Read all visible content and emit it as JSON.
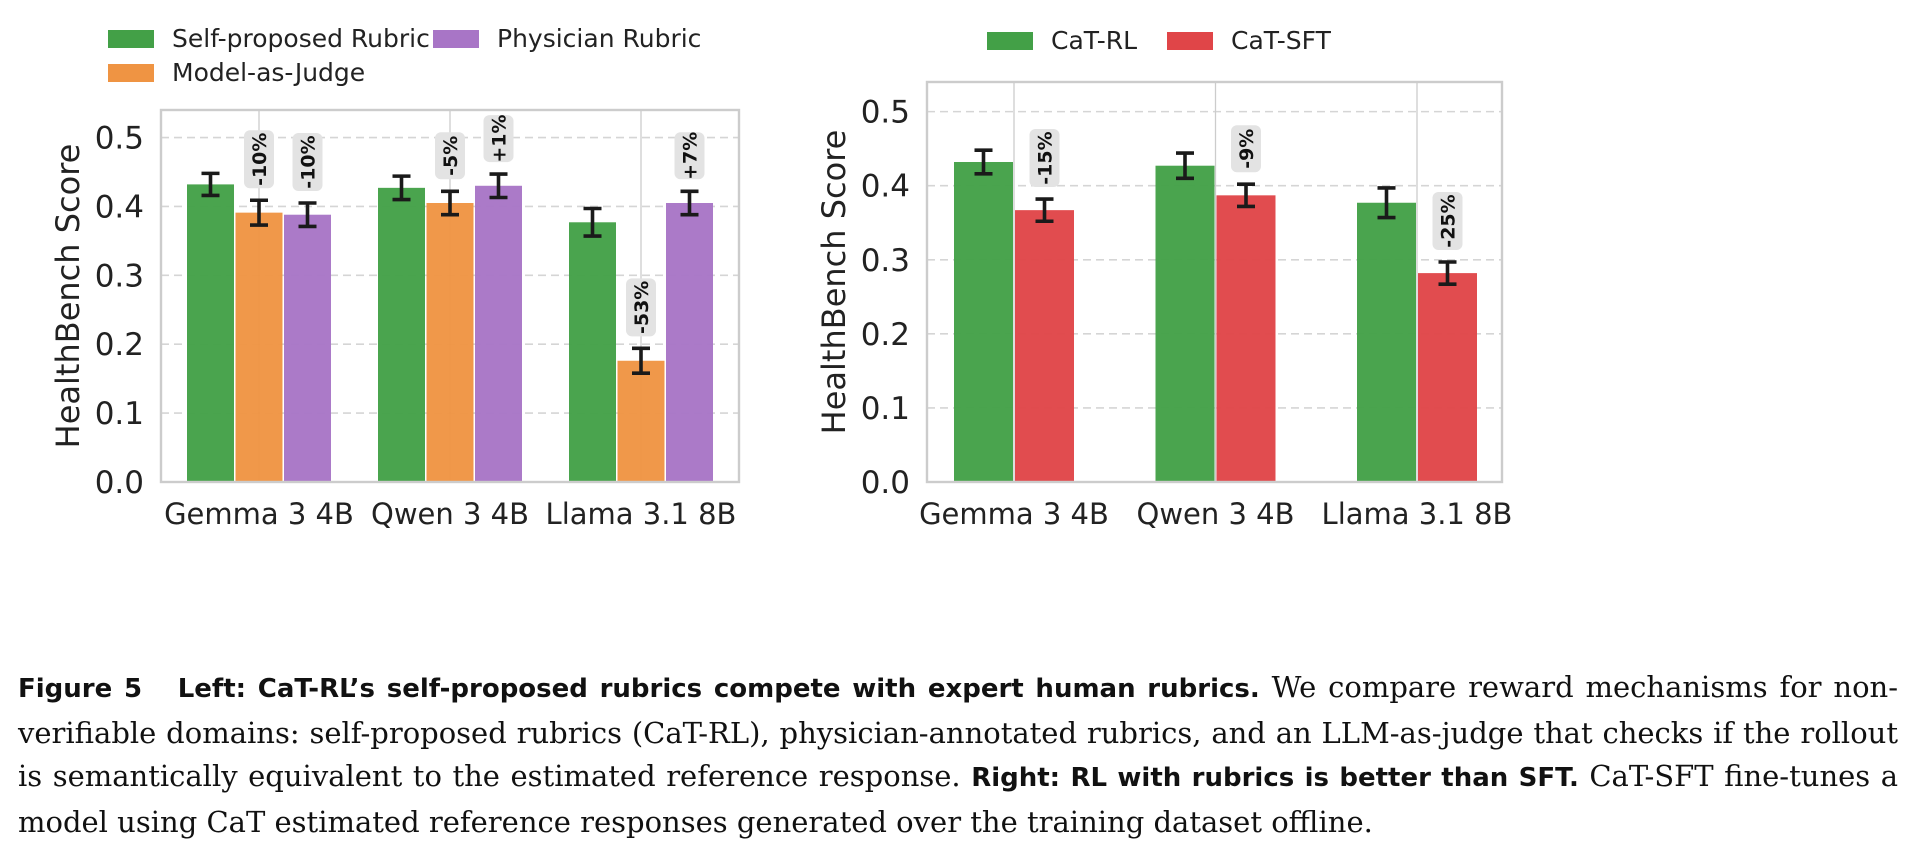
{
  "colors": {
    "green": "#43A047",
    "orange": "#EF9443",
    "purple": "#A875C6",
    "red": "#E04548",
    "grid": "#D5D5D5",
    "badge": "#E3E3E3",
    "axis": "#CCCCCC"
  },
  "chart_data": [
    {
      "type": "bar",
      "ylabel": "HealthBench Score",
      "ylim": [
        0,
        0.54
      ],
      "yticks": [
        "0.0",
        "0.1",
        "0.2",
        "0.3",
        "0.4",
        "0.5"
      ],
      "categories": [
        "Gemma 3 4B",
        "Qwen 3 4B",
        "Llama 3.1 8B"
      ],
      "legend_position": "top",
      "series": [
        {
          "name": "Self-proposed Rubric",
          "color_key": "green",
          "values": [
            0.432,
            0.427,
            0.377
          ],
          "errors": [
            0.016,
            0.017,
            0.02
          ]
        },
        {
          "name": "Model-as-Judge",
          "color_key": "orange",
          "values": [
            0.391,
            0.405,
            0.176
          ],
          "errors": [
            0.018,
            0.017,
            0.018
          ]
        },
        {
          "name": "Physician Rubric",
          "color_key": "purple",
          "values": [
            0.388,
            0.43,
            0.405
          ],
          "errors": [
            0.017,
            0.017,
            0.017
          ]
        }
      ],
      "annotations": [
        {
          "category": 0,
          "series": 1,
          "text": "-10%"
        },
        {
          "category": 0,
          "series": 2,
          "text": "-10%"
        },
        {
          "category": 1,
          "series": 1,
          "text": "-5%"
        },
        {
          "category": 1,
          "series": 2,
          "text": "+1%"
        },
        {
          "category": 2,
          "series": 1,
          "text": "-53%"
        },
        {
          "category": 2,
          "series": 2,
          "text": "+7%"
        }
      ],
      "grid": true
    },
    {
      "type": "bar",
      "ylabel": "HealthBench Score",
      "ylim": [
        0,
        0.54
      ],
      "yticks": [
        "0.0",
        "0.1",
        "0.2",
        "0.3",
        "0.4",
        "0.5"
      ],
      "categories": [
        "Gemma 3 4B",
        "Qwen 3 4B",
        "Llama 3.1 8B"
      ],
      "legend_position": "top",
      "series": [
        {
          "name": "CaT-RL",
          "color_key": "green",
          "values": [
            0.432,
            0.427,
            0.377
          ],
          "errors": [
            0.016,
            0.017,
            0.02
          ]
        },
        {
          "name": "CaT-SFT",
          "color_key": "red",
          "values": [
            0.367,
            0.387,
            0.282
          ],
          "errors": [
            0.015,
            0.015,
            0.015
          ]
        }
      ],
      "annotations": [
        {
          "category": 0,
          "series": 1,
          "text": "-15%"
        },
        {
          "category": 1,
          "series": 1,
          "text": "-9%"
        },
        {
          "category": 2,
          "series": 1,
          "text": "-25%"
        }
      ],
      "grid": true
    }
  ],
  "caption": {
    "label": "Figure 5",
    "left_title": "Left: CaT-RL’s self-proposed rubrics compete with expert human rubrics.",
    "left_text": " We compare reward mechanisms for non-verifiable domains: self-proposed rubrics (CaT-RL), physician-annotated rubrics, and an LLM-as-judge that checks if the rollout is semantically equivalent to the estimated reference response. ",
    "right_title": "Right: RL with rubrics is better than SFT.",
    "right_text": " CaT-SFT fine-tunes a model using CaT estimated reference responses generated over the training dataset offline."
  }
}
